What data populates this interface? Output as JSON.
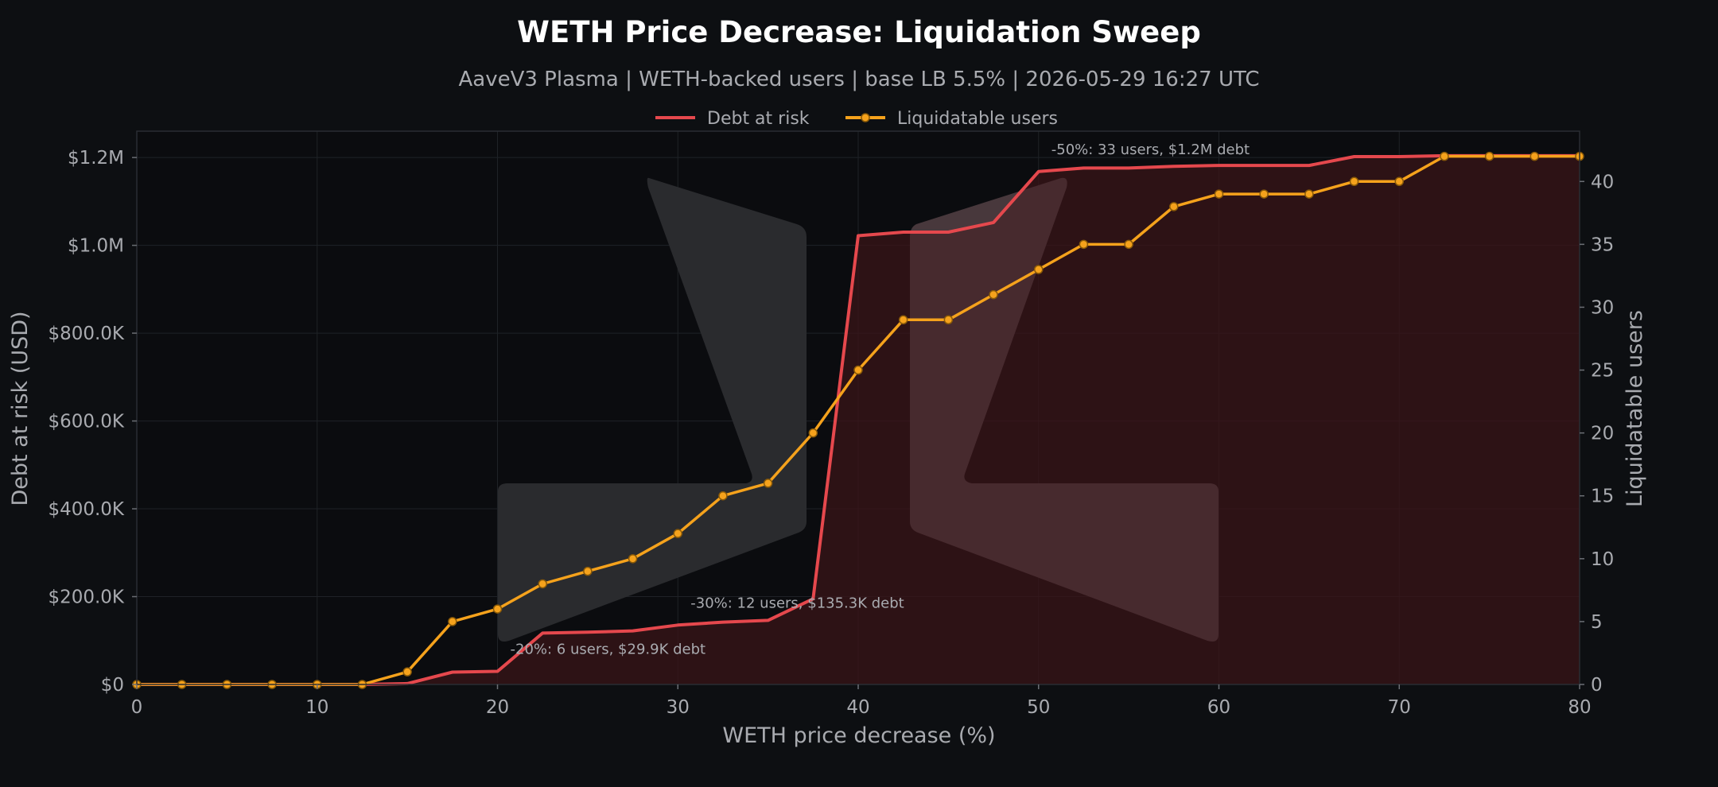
{
  "chart_data": {
    "type": "line",
    "title": "WETH Price Decrease: Liquidation Sweep",
    "subtitle": "AaveV3 Plasma | WETH-backed users | base LB 5.5% | 2026-05-29 16:27 UTC",
    "xlabel": "WETH price decrease (%)",
    "ylabel": "Debt at risk (USD)",
    "y2label": "Liquidatable users",
    "xlim": [
      0,
      80
    ],
    "ylim": [
      0,
      1260000
    ],
    "y2lim": [
      0,
      44
    ],
    "x_ticks": [
      0,
      10,
      20,
      30,
      40,
      50,
      60,
      70,
      80
    ],
    "y_ticks": [
      {
        "value": 0,
        "label": "$0"
      },
      {
        "value": 200000,
        "label": "$200.0K"
      },
      {
        "value": 400000,
        "label": "$400.0K"
      },
      {
        "value": 600000,
        "label": "$600.0K"
      },
      {
        "value": 800000,
        "label": "$800.0K"
      },
      {
        "value": 1000000,
        "label": "$1.0M"
      },
      {
        "value": 1200000,
        "label": "$1.2M"
      }
    ],
    "y2_ticks": [
      0,
      5,
      10,
      15,
      20,
      25,
      30,
      35,
      40
    ],
    "grid": true,
    "legend": {
      "placement": "top-center"
    },
    "x": [
      0,
      2.5,
      5,
      7.5,
      10,
      12.5,
      15,
      17.5,
      20,
      22.5,
      25,
      27.5,
      30,
      32.5,
      35,
      37.5,
      40,
      42.5,
      45,
      47.5,
      50,
      52.5,
      55,
      57.5,
      60,
      62.5,
      65,
      67.5,
      70,
      72.5,
      75,
      77.5,
      80
    ],
    "series": [
      {
        "name": "Debt at risk",
        "axis": "left",
        "color": "#e5484d",
        "fill_color": "#3a1418",
        "values": [
          0,
          0,
          0,
          0,
          0,
          0,
          2000,
          28000,
          29900,
          117000,
          119000,
          122000,
          135300,
          142000,
          146000,
          195000,
          1022000,
          1030000,
          1030000,
          1052000,
          1168000,
          1176000,
          1176000,
          1180000,
          1182000,
          1182000,
          1182000,
          1202000,
          1202000,
          1204000,
          1204000,
          1204000,
          1204000
        ]
      },
      {
        "name": "Liquidatable users",
        "axis": "right",
        "color": "#f5a21c",
        "values": [
          0,
          0,
          0,
          0,
          0,
          0,
          1,
          5,
          6,
          8,
          9,
          10,
          12,
          15,
          16,
          20,
          25,
          29,
          29,
          31,
          33,
          35,
          35,
          38,
          39,
          39,
          39,
          40,
          40,
          42,
          42,
          42,
          42
        ]
      }
    ],
    "annotations": [
      {
        "x": 20,
        "text": "-20%: 6 users, $29.9K debt"
      },
      {
        "x": 30,
        "text": "-30%: 12 users, $135.3K debt"
      },
      {
        "x": 50,
        "text": "-50%: 33 users, $1.2M debt"
      }
    ]
  },
  "colors": {
    "background": "#0d0f12",
    "plot_background": "#0b0c0f",
    "grid": "#1f2227",
    "text": "#a9abb0"
  },
  "watermark": "aave-ghost-logo"
}
